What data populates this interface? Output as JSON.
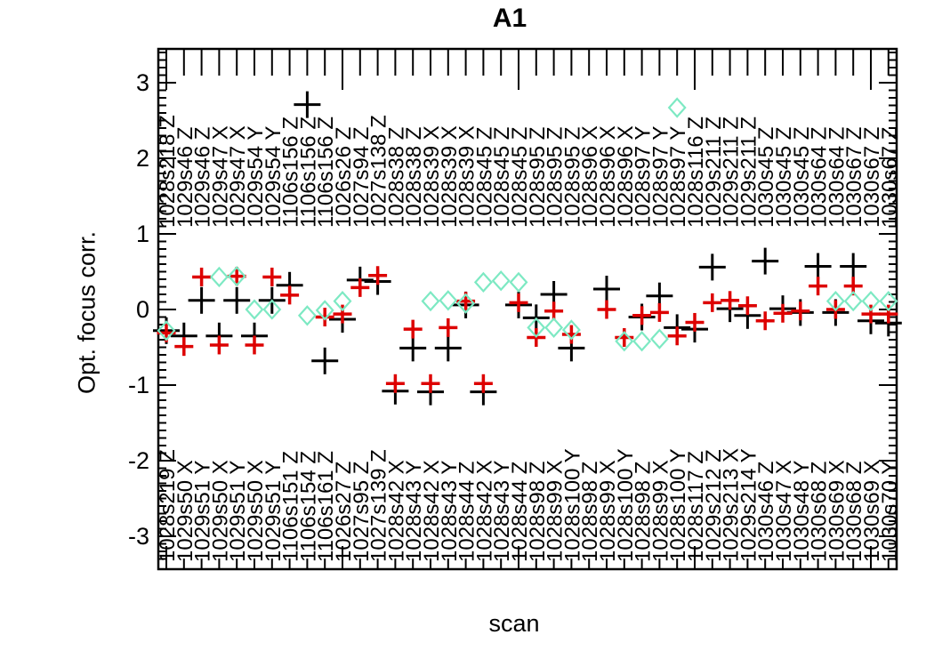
{
  "title": "A1",
  "x_axis_title": "scan",
  "y_axis_title": "Opt. focus corr.",
  "colors": {
    "axis": "#000000",
    "black_series": "#000000",
    "red_series": "#dd0000",
    "diamond_series": "#7de9c3",
    "background": "#ffffff"
  },
  "chart_data": {
    "type": "scatter",
    "title": "A1",
    "xlabel": "scan",
    "ylabel": "Opt. focus corr.",
    "ylim": [
      -3.4,
      3.45
    ],
    "y_major_ticks": [
      3,
      2,
      1,
      0,
      -1,
      -2,
      -3
    ],
    "y_minor_step": 0.1,
    "n_columns": 42,
    "x_major_every": 10,
    "grid": false,
    "legend": "none",
    "top_labels": [
      "1028s218 Z",
      "1029s46 Z",
      "1029s46 Z",
      "1029s47 X",
      "1029s47 X",
      "1029s54 Y",
      "1029s54 Y",
      "1106s156 Z",
      "1106s156 Z",
      "1106s156 Z",
      "1026s26 Z",
      "1027s94 Z",
      "1027s138 Z",
      "1028s38 Z",
      "1028s38 Z",
      "1028s39 X",
      "1028s39 X",
      "1028s39 X",
      "1028s45 Z",
      "1028s45 Z",
      "1028s45 Z",
      "1028s95 Z",
      "1028s95 Z",
      "1028s95 Z",
      "1028s96 X",
      "1028s96 X",
      "1028s96 X",
      "1028s97 Y",
      "1028s97 Y",
      "1028s97 Y",
      "1028s116 Z",
      "1029s211 Z",
      "1029s211 Z",
      "1029s211 Z",
      "1030s45 Z",
      "1030s45 Z",
      "1030s45 Z",
      "1030s64 Z",
      "1030s64 Z",
      "1030s67 Z",
      "1030s67 Z",
      "1030s67 Z"
    ],
    "bottom_labels": [
      "1028s219 Z",
      "1029s50 X",
      "1029s51 Y",
      "1029s50 X",
      "1029s51 Y",
      "1029s50 X",
      "1029s51 Y",
      "1106s151 Z",
      "1106s154 Z",
      "1106s161 Z",
      "1026s27 Z",
      "1027s95 Z",
      "1027s139 Z",
      "1028s42 X",
      "1028s43 Y",
      "1028s42 X",
      "1028s43 Y",
      "1028s44 Z",
      "1028s42 X",
      "1028s43 Y",
      "1028s44 Z",
      "1028s98 Z",
      "1028s99 X",
      "1028s100 Y",
      "1028s98 Z",
      "1028s99 X",
      "1028s100 Y",
      "1028s98 Z",
      "1028s99 X",
      "1028s100 Y",
      "1028s117 Z",
      "1029s212 Z",
      "1029s213 X",
      "1029s214 Y",
      "1030s46 Z",
      "1030s47 X",
      "1030s48 Y",
      "1030s68 Z",
      "1030s69 X",
      "1030s68 Z",
      "1030s69 X",
      "1030s70 Y"
    ],
    "series": [
      {
        "name": "black-plus",
        "marker": "plus",
        "color": "#000000",
        "size": 30,
        "stroke": 3,
        "values": [
          -0.28,
          -0.35,
          0.12,
          -0.35,
          0.12,
          -0.35,
          0.12,
          0.32,
          2.71,
          -0.68,
          -0.13,
          0.39,
          0.37,
          -1.08,
          -0.51,
          -1.09,
          -0.51,
          0.06,
          -1.09,
          null,
          0.06,
          -0.11,
          0.2,
          -0.51,
          null,
          0.27,
          null,
          -0.1,
          0.18,
          -0.24,
          -0.26,
          0.56,
          0.01,
          -0.08,
          0.64,
          0.01,
          -0.04,
          0.57,
          -0.04,
          0.57,
          -0.15,
          -0.18
        ]
      },
      {
        "name": "red-plus",
        "marker": "plus",
        "color": "#dd0000",
        "size": 21,
        "stroke": 3.5,
        "values": [
          -0.31,
          -0.49,
          0.43,
          -0.47,
          0.44,
          -0.47,
          0.43,
          0.19,
          null,
          -0.1,
          -0.06,
          0.29,
          0.45,
          -0.98,
          -0.26,
          -0.98,
          -0.24,
          0.11,
          -0.98,
          null,
          0.09,
          -0.37,
          -0.02,
          -0.33,
          null,
          0.0,
          -0.37,
          -0.08,
          -0.04,
          -0.35,
          -0.17,
          0.09,
          0.12,
          0.05,
          -0.15,
          -0.05,
          -0.02,
          0.31,
          0.0,
          0.31,
          -0.06,
          -0.06
        ]
      },
      {
        "name": "aquamarine-diamond",
        "marker": "diamond",
        "color": "#7de9c3",
        "size": 20,
        "stroke": 2.2,
        "values": [
          -0.28,
          null,
          null,
          0.43,
          0.44,
          0.0,
          0.0,
          null,
          -0.08,
          -0.01,
          0.11,
          null,
          null,
          null,
          null,
          0.11,
          0.12,
          0.08,
          0.36,
          0.38,
          0.36,
          -0.24,
          -0.24,
          -0.27,
          null,
          null,
          -0.42,
          -0.42,
          -0.39,
          2.67,
          null,
          null,
          null,
          null,
          null,
          null,
          null,
          null,
          0.11,
          0.11,
          0.11,
          0.11
        ]
      }
    ]
  }
}
